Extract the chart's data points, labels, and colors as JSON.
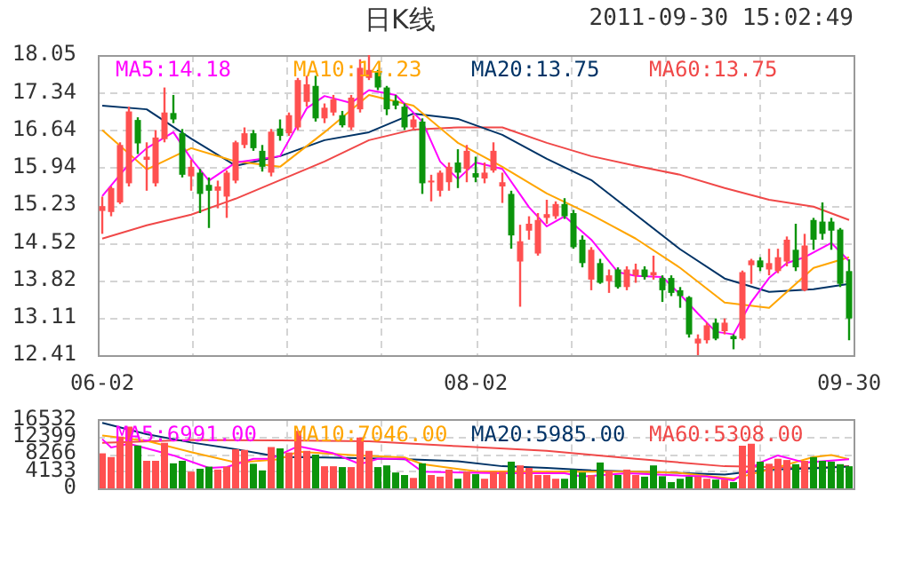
{
  "chart_data": [
    {
      "type": "candlestick",
      "title": "日K线",
      "annotations": [
        "2011-09-30 15:02:49"
      ],
      "categories": [
        "06-02",
        null,
        null,
        null,
        null,
        null,
        null,
        null,
        null,
        null,
        null,
        null,
        null,
        null,
        null,
        null,
        null,
        null,
        null,
        null,
        null,
        null,
        null,
        null,
        null,
        null,
        null,
        null,
        null,
        null,
        null,
        null,
        null,
        null,
        null,
        null,
        null,
        null,
        null,
        null,
        null,
        null,
        "08-02",
        null,
        null,
        null,
        null,
        null,
        null,
        null,
        null,
        null,
        null,
        null,
        null,
        null,
        null,
        null,
        null,
        null,
        null,
        null,
        null,
        null,
        null,
        null,
        null,
        null,
        null,
        null,
        null,
        null,
        null,
        null,
        null,
        null,
        null,
        null,
        null,
        null,
        null,
        null,
        null,
        null,
        "09-30"
      ],
      "ohlc": [
        [
          15.12,
          15.39,
          14.69,
          15.21
        ],
        [
          15.1,
          15.58,
          15.02,
          15.55
        ],
        [
          15.28,
          16.41,
          15.25,
          16.36
        ],
        [
          15.64,
          17.08,
          15.58,
          16.99
        ],
        [
          16.83,
          16.88,
          16.19,
          16.39
        ],
        [
          16.08,
          16.41,
          15.5,
          16.14
        ],
        [
          15.64,
          16.64,
          15.58,
          16.5
        ],
        [
          16.47,
          17.44,
          16.41,
          16.97
        ],
        [
          16.96,
          17.3,
          16.77,
          16.84
        ],
        [
          16.58,
          16.66,
          15.75,
          15.8
        ],
        [
          15.77,
          16.08,
          15.5,
          15.95
        ],
        [
          15.84,
          15.91,
          15.08,
          15.44
        ],
        [
          15.61,
          15.75,
          14.8,
          15.5
        ],
        [
          15.5,
          15.69,
          15.17,
          15.58
        ],
        [
          15.39,
          15.88,
          14.99,
          15.84
        ],
        [
          15.69,
          16.44,
          15.64,
          16.41
        ],
        [
          16.36,
          16.69,
          16.3,
          16.58
        ],
        [
          16.58,
          16.64,
          16.25,
          16.3
        ],
        [
          16.25,
          16.36,
          15.86,
          15.95
        ],
        [
          15.84,
          16.66,
          15.77,
          16.61
        ],
        [
          16.67,
          16.84,
          16.44,
          16.53
        ],
        [
          16.58,
          16.97,
          16.53,
          16.92
        ],
        [
          16.69,
          17.62,
          16.64,
          17.58
        ],
        [
          17.17,
          17.66,
          17.08,
          17.5
        ],
        [
          17.47,
          17.66,
          16.8,
          16.86
        ],
        [
          16.86,
          17.14,
          16.77,
          17.06
        ],
        [
          16.97,
          17.3,
          16.91,
          17.22
        ],
        [
          16.92,
          17.0,
          16.69,
          16.73
        ],
        [
          16.69,
          17.3,
          16.64,
          17.25
        ],
        [
          17.03,
          17.97,
          16.97,
          17.81
        ],
        [
          17.62,
          18.05,
          17.58,
          17.77
        ],
        [
          17.73,
          17.77,
          17.39,
          17.44
        ],
        [
          17.44,
          17.47,
          16.92,
          17.03
        ],
        [
          17.19,
          17.3,
          17.03,
          17.1
        ],
        [
          17.08,
          17.14,
          16.64,
          16.69
        ],
        [
          16.69,
          16.92,
          16.64,
          16.84
        ],
        [
          16.8,
          16.86,
          15.44,
          15.64
        ],
        [
          15.66,
          15.8,
          15.3,
          15.69
        ],
        [
          15.5,
          15.88,
          15.39,
          15.84
        ],
        [
          15.66,
          16.03,
          15.5,
          15.95
        ],
        [
          16.03,
          16.28,
          15.55,
          15.84
        ],
        [
          15.91,
          16.36,
          15.66,
          16.25
        ],
        [
          15.83,
          16.14,
          15.66,
          15.75
        ],
        [
          15.73,
          16.03,
          15.64,
          15.84
        ],
        [
          15.88,
          16.41,
          15.84,
          16.25
        ],
        [
          15.58,
          15.84,
          15.27,
          15.66
        ],
        [
          15.44,
          15.5,
          14.41,
          14.66
        ],
        [
          14.17,
          14.86,
          13.32,
          14.55
        ],
        [
          14.75,
          15.02,
          14.58,
          14.88
        ],
        [
          14.32,
          15.08,
          14.28,
          14.95
        ],
        [
          14.99,
          15.33,
          14.88,
          15.06
        ],
        [
          15.02,
          15.3,
          14.97,
          15.25
        ],
        [
          15.25,
          15.36,
          14.97,
          15.02
        ],
        [
          15.08,
          15.14,
          14.41,
          14.44
        ],
        [
          14.58,
          14.66,
          14.06,
          14.14
        ],
        [
          13.83,
          14.44,
          13.63,
          14.39
        ],
        [
          14.14,
          14.22,
          13.75,
          13.77
        ],
        [
          13.8,
          14.02,
          13.58,
          13.91
        ],
        [
          14.02,
          14.06,
          13.66,
          13.69
        ],
        [
          13.69,
          14.08,
          13.63,
          14.02
        ],
        [
          13.91,
          14.13,
          13.77,
          14.02
        ],
        [
          14.02,
          14.08,
          13.83,
          13.88
        ],
        [
          13.91,
          14.28,
          13.83,
          13.97
        ],
        [
          13.86,
          13.91,
          13.41,
          13.63
        ],
        [
          13.86,
          13.91,
          13.52,
          13.58
        ],
        [
          13.63,
          13.69,
          13.3,
          13.52
        ],
        [
          13.5,
          13.52,
          12.74,
          12.8
        ],
        [
          12.63,
          12.8,
          12.41,
          12.72
        ],
        [
          12.69,
          13.02,
          12.63,
          12.97
        ],
        [
          13.02,
          13.1,
          12.69,
          12.72
        ],
        [
          12.86,
          13.1,
          12.8,
          13.02
        ],
        [
          12.77,
          12.8,
          12.52,
          12.71
        ],
        [
          12.72,
          14.0,
          12.69,
          13.97
        ],
        [
          14.1,
          14.22,
          13.75,
          14.19
        ],
        [
          14.19,
          14.25,
          13.99,
          14.06
        ],
        [
          14.02,
          14.41,
          13.91,
          14.14
        ],
        [
          13.99,
          14.41,
          13.95,
          14.25
        ],
        [
          14.17,
          14.64,
          14.08,
          14.58
        ],
        [
          14.39,
          14.88,
          13.99,
          14.06
        ],
        [
          13.63,
          14.69,
          13.61,
          14.47
        ],
        [
          14.95,
          14.99,
          14.39,
          14.58
        ],
        [
          14.92,
          15.28,
          14.58,
          14.69
        ],
        [
          14.92,
          14.99,
          14.39,
          14.75
        ],
        [
          14.77,
          14.8,
          13.69,
          13.75
        ],
        [
          13.99,
          14.21,
          12.69,
          13.1
        ]
      ],
      "colors": [
        "#ff5050",
        "#ff5050",
        "#ff5050",
        "#ff5050",
        "#0c940c",
        "#ff5050",
        "#ff5050",
        "#ff5050",
        "#0c940c",
        "#0c940c",
        "#ff5050",
        "#0c940c",
        "#0c940c",
        "#ff5050",
        "#ff5050",
        "#ff5050",
        "#ff5050",
        "#0c940c",
        "#0c940c",
        "#ff5050",
        "#0c940c",
        "#ff5050",
        "#ff5050",
        "#ff5050",
        "#0c940c",
        "#ff5050",
        "#ff5050",
        "#0c940c",
        "#ff5050",
        "#ff5050",
        "#ff5050",
        "#0c940c",
        "#0c940c",
        "#0c940c",
        "#0c940c",
        "#ff5050",
        "#0c940c",
        "#ff5050",
        "#ff5050",
        "#ff5050",
        "#0c940c",
        "#ff5050",
        "#0c940c",
        "#ff5050",
        "#ff5050",
        "#ff5050",
        "#0c940c",
        "#ff5050",
        "#ff5050",
        "#ff5050",
        "#ff5050",
        "#ff5050",
        "#0c940c",
        "#0c940c",
        "#0c940c",
        "#ff5050",
        "#0c940c",
        "#ff5050",
        "#0c940c",
        "#ff5050",
        "#ff5050",
        "#0c940c",
        "#ff5050",
        "#0c940c",
        "#0c940c",
        "#0c940c",
        "#0c940c",
        "#ff5050",
        "#ff5050",
        "#0c940c",
        "#ff5050",
        "#0c940c",
        "#ff5050",
        "#ff5050",
        "#0c940c",
        "#ff5050",
        "#ff5050",
        "#ff5050",
        "#0c940c",
        "#ff5050",
        "#0c940c",
        "#0c940c",
        "#0c940c",
        "#0c940c",
        "#0c940c"
      ],
      "series": [
        {
          "type": "line",
          "name": "MA5:14.18",
          "color": "#ff00ff",
          "values": [
            15.4,
            null,
            null,
            16.0,
            null,
            16.3,
            null,
            null,
            16.6,
            null,
            16.1,
            null,
            15.69,
            null,
            null,
            16.03,
            null,
            null,
            null,
            null,
            16.15,
            null,
            null,
            17.05,
            null,
            17.28,
            null,
            null,
            17.15,
            null,
            17.39,
            null,
            null,
            17.3,
            null,
            null,
            16.8,
            null,
            16.05,
            null,
            15.72,
            null,
            16.03,
            null,
            null,
            15.91,
            null,
            null,
            15.19,
            null,
            14.83,
            null,
            15.02,
            null,
            null,
            14.58,
            null,
            null,
            13.97,
            null,
            13.9,
            null,
            null,
            13.88,
            null,
            13.55,
            null,
            13.19,
            null,
            12.85,
            null,
            12.8,
            null,
            13.41,
            null,
            13.86,
            null,
            14.14,
            null,
            14.25,
            null,
            null,
            14.52,
            null,
            14.18
          ]
        },
        {
          "type": "line",
          "name": "MA10:14.23",
          "color": "#ffa500",
          "values": [
            16.64,
            null,
            null,
            null,
            null,
            15.9,
            null,
            null,
            null,
            null,
            16.3,
            null,
            null,
            null,
            null,
            16.05,
            null,
            null,
            null,
            null,
            15.95,
            null,
            null,
            null,
            null,
            16.6,
            null,
            null,
            null,
            null,
            17.3,
            null,
            null,
            null,
            null,
            17.1,
            null,
            null,
            null,
            null,
            16.4,
            null,
            null,
            null,
            null,
            15.95,
            null,
            null,
            null,
            null,
            15.45,
            null,
            null,
            null,
            null,
            15.05,
            null,
            null,
            null,
            null,
            14.6,
            null,
            null,
            null,
            null,
            14.05,
            null,
            null,
            null,
            null,
            13.4,
            null,
            null,
            null,
            null,
            13.3,
            null,
            null,
            null,
            null,
            14.05,
            null,
            null,
            null,
            14.25
          ]
        },
        {
          "type": "line",
          "name": "MA20:13.75",
          "color": "#003366",
          "values": [
            17.1,
            null,
            null,
            null,
            null,
            17.03,
            null,
            null,
            null,
            null,
            16.48,
            null,
            null,
            null,
            null,
            15.97,
            null,
            null,
            null,
            null,
            16.15,
            null,
            null,
            null,
            null,
            16.45,
            null,
            null,
            null,
            null,
            16.6,
            null,
            null,
            null,
            null,
            16.95,
            null,
            null,
            null,
            null,
            16.85,
            null,
            null,
            null,
            null,
            16.55,
            null,
            null,
            null,
            null,
            16.1,
            null,
            null,
            null,
            null,
            15.7,
            null,
            null,
            null,
            null,
            15.05,
            null,
            null,
            null,
            null,
            14.4,
            null,
            null,
            null,
            null,
            13.85,
            null,
            null,
            null,
            null,
            13.6,
            null,
            null,
            null,
            null,
            13.65,
            null,
            null,
            null,
            13.75
          ]
        },
        {
          "type": "line",
          "name": "MA60:13.75",
          "color": "#f04848",
          "values": [
            14.6,
            null,
            null,
            null,
            null,
            14.85,
            null,
            null,
            null,
            null,
            15.05,
            null,
            null,
            null,
            null,
            15.35,
            null,
            null,
            null,
            null,
            15.7,
            null,
            null,
            null,
            null,
            16.05,
            null,
            null,
            null,
            null,
            16.45,
            null,
            null,
            null,
            null,
            16.65,
            null,
            null,
            null,
            null,
            16.69,
            null,
            null,
            null,
            null,
            16.69,
            null,
            null,
            null,
            null,
            16.4,
            null,
            null,
            null,
            null,
            16.15,
            null,
            null,
            null,
            null,
            15.97,
            null,
            null,
            null,
            null,
            15.8,
            null,
            null,
            null,
            null,
            15.55,
            null,
            null,
            null,
            null,
            15.33,
            null,
            null,
            null,
            null,
            15.2,
            null,
            null,
            null,
            14.95
          ]
        }
      ],
      "ylim": [
        12.41,
        18.05
      ],
      "yticks": [
        12.41,
        13.11,
        13.82,
        14.52,
        15.23,
        15.94,
        16.64,
        17.34,
        18.05
      ],
      "grid": true,
      "legend": "top"
    },
    {
      "type": "bar",
      "tick_labels": "y",
      "categories": [
        null,
        null,
        null,
        null,
        null,
        null,
        null,
        null,
        null,
        null,
        null,
        null,
        null,
        null,
        null,
        null,
        null,
        null,
        null,
        null,
        null,
        null,
        null,
        null,
        null,
        null,
        null,
        null,
        null,
        null,
        null,
        null,
        null,
        null,
        null,
        null,
        null,
        null,
        null,
        null,
        null,
        null,
        null,
        null,
        null,
        null,
        null,
        null,
        null,
        null,
        null,
        null,
        null,
        null,
        null,
        null,
        null,
        null,
        null,
        null,
        null,
        null,
        null,
        null,
        null,
        null,
        null,
        null,
        null,
        null,
        null,
        null,
        null,
        null,
        null,
        null,
        null,
        null,
        null,
        null,
        null,
        null,
        null,
        null,
        null
      ],
      "series": [
        {
          "type": "bar",
          "values": [
            8400,
            7500,
            12400,
            14800,
            10300,
            6600,
            6600,
            10900,
            6000,
            6600,
            4000,
            4700,
            5200,
            4500,
            5200,
            9400,
            9200,
            5900,
            4300,
            9900,
            9600,
            8600,
            13800,
            9000,
            8100,
            5300,
            5300,
            5100,
            5100,
            12200,
            9000,
            5100,
            5500,
            3800,
            3200,
            2500,
            6000,
            3200,
            2800,
            4500,
            2300,
            4000,
            3400,
            2300,
            4000,
            4000,
            6400,
            5500,
            4900,
            3200,
            3200,
            2300,
            2300,
            4500,
            3800,
            3200,
            6200,
            4300,
            3200,
            4500,
            3200,
            2800,
            5500,
            2900,
            1500,
            2300,
            2800,
            2800,
            2300,
            2100,
            2100,
            1500,
            10200,
            10700,
            6400,
            5900,
            7100,
            6800,
            5800,
            6600,
            7500,
            6600,
            6400,
            5800,
            5300
          ],
          "colors": [
            "#ff5050",
            "#ff5050",
            "#ff5050",
            "#ff5050",
            "#0c940c",
            "#ff5050",
            "#ff5050",
            "#ff5050",
            "#0c940c",
            "#0c940c",
            "#ff5050",
            "#0c940c",
            "#0c940c",
            "#ff5050",
            "#ff5050",
            "#ff5050",
            "#ff5050",
            "#0c940c",
            "#0c940c",
            "#ff5050",
            "#0c940c",
            "#ff5050",
            "#ff5050",
            "#ff5050",
            "#0c940c",
            "#ff5050",
            "#ff5050",
            "#0c940c",
            "#ff5050",
            "#ff5050",
            "#ff5050",
            "#0c940c",
            "#0c940c",
            "#0c940c",
            "#0c940c",
            "#ff5050",
            "#0c940c",
            "#ff5050",
            "#ff5050",
            "#ff5050",
            "#0c940c",
            "#ff5050",
            "#0c940c",
            "#ff5050",
            "#ff5050",
            "#ff5050",
            "#0c940c",
            "#ff5050",
            "#ff5050",
            "#ff5050",
            "#ff5050",
            "#ff5050",
            "#0c940c",
            "#0c940c",
            "#0c940c",
            "#ff5050",
            "#0c940c",
            "#ff5050",
            "#0c940c",
            "#ff5050",
            "#ff5050",
            "#0c940c",
            "#0c940c",
            "#0c940c",
            "#0c940c",
            "#0c940c",
            "#0c940c",
            "#ff5050",
            "#ff5050",
            "#0c940c",
            "#ff5050",
            "#0c940c",
            "#ff5050",
            "#ff5050",
            "#0c940c",
            "#ff5050",
            "#ff5050",
            "#ff5050",
            "#0c940c",
            "#ff5050",
            "#0c940c",
            "#0c940c",
            "#0c940c",
            "#0c940c",
            "#0c940c"
          ]
        },
        {
          "type": "line",
          "name": "MA5:6991.00",
          "color": "#ff00ff",
          "values": [
            11800,
            9800,
            null,
            10700,
            null,
            null,
            null,
            null,
            7900,
            null,
            null,
            null,
            4900,
            null,
            5100,
            null,
            null,
            7100,
            null,
            7100,
            null,
            null,
            10100,
            null,
            null,
            null,
            8400,
            null,
            null,
            5800,
            null,
            7100,
            null,
            null,
            7100,
            null,
            4000,
            null,
            null,
            null,
            null,
            null,
            null,
            null,
            null,
            3600,
            null,
            null,
            null,
            null,
            null,
            null,
            3600,
            null,
            2800,
            null,
            null,
            null,
            null,
            3600,
            null,
            null,
            null,
            null,
            null,
            null,
            null,
            null,
            2800,
            null,
            null,
            1900,
            null,
            null,
            6200,
            null,
            7900,
            null,
            null,
            6200,
            null,
            null,
            null,
            null,
            7000
          ]
        },
        {
          "type": "line",
          "name": "MA10:7046.00",
          "color": "#ffa500",
          "values": [
            12700,
            null,
            null,
            null,
            null,
            11400,
            null,
            null,
            null,
            null,
            8700,
            null,
            null,
            null,
            null,
            6200,
            null,
            null,
            null,
            null,
            7000,
            null,
            8800,
            null,
            null,
            null,
            null,
            null,
            8000,
            null,
            null,
            null,
            null,
            null,
            7400,
            null,
            5800,
            null,
            null,
            null,
            null,
            null,
            4100,
            null,
            null,
            null,
            null,
            null,
            null,
            null,
            4000,
            null,
            null,
            null,
            null,
            null,
            null,
            null,
            null,
            null,
            4000,
            null,
            null,
            null,
            null,
            3700,
            null,
            null,
            null,
            null,
            null,
            2300,
            null,
            null,
            null,
            4500,
            null,
            null,
            null,
            null,
            7500,
            null,
            8000,
            null,
            7000
          ]
        },
        {
          "type": "line",
          "name": "MA20:5985.00",
          "color": "#003366",
          "values": [
            15700,
            null,
            null,
            null,
            null,
            13000,
            null,
            null,
            null,
            null,
            11000,
            null,
            null,
            null,
            null,
            9400,
            null,
            null,
            null,
            null,
            7500,
            null,
            null,
            null,
            null,
            7400,
            null,
            null,
            null,
            null,
            7200,
            null,
            null,
            null,
            null,
            6900,
            null,
            null,
            null,
            null,
            6500,
            null,
            null,
            null,
            null,
            5300,
            null,
            null,
            null,
            null,
            4900,
            null,
            null,
            null,
            null,
            4300,
            null,
            null,
            null,
            null,
            4000,
            null,
            null,
            null,
            null,
            3700,
            null,
            null,
            null,
            null,
            3300,
            null,
            null,
            null,
            null,
            4500,
            null,
            null,
            null,
            null,
            4800,
            null,
            null,
            null,
            5200
          ]
        },
        {
          "type": "line",
          "name": "MA60:5308.00",
          "color": "#f04848",
          "values": [
            10900,
            null,
            null,
            null,
            null,
            null,
            null,
            null,
            null,
            null,
            11600,
            null,
            null,
            null,
            null,
            null,
            null,
            null,
            null,
            null,
            11500,
            null,
            null,
            null,
            null,
            null,
            null,
            null,
            null,
            null,
            11300,
            null,
            null,
            null,
            null,
            null,
            null,
            null,
            null,
            null,
            10100,
            null,
            null,
            null,
            null,
            null,
            null,
            null,
            null,
            null,
            9000,
            null,
            null,
            null,
            null,
            null,
            null,
            null,
            null,
            null,
            7100,
            null,
            null,
            null,
            null,
            null,
            null,
            null,
            null,
            null,
            5300,
            null,
            null,
            null,
            null,
            null,
            null,
            null,
            null,
            null,
            4900,
            null,
            null,
            null,
            5300
          ]
        }
      ],
      "ylim": [
        0,
        16532
      ],
      "yticks": [
        0,
        4133,
        8266,
        12399,
        16532
      ],
      "grid": true,
      "legend": "top"
    }
  ]
}
